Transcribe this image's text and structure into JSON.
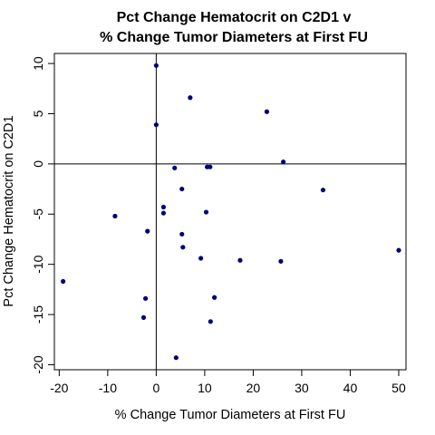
{
  "chart_data": {
    "type": "scatter",
    "title_lines": [
      "Pct Change Hematocrit on C2D1 v",
      "% Change Tumor Diameters at First FU"
    ],
    "xlabel": "% Change Tumor Diameters at First FU",
    "ylabel": "Pct Change Hematocrit on C2D1",
    "xlim": [
      -21,
      51.5
    ],
    "ylim": [
      -20.5,
      11
    ],
    "x_ticks": [
      -20,
      -10,
      0,
      10,
      20,
      30,
      40,
      50
    ],
    "y_ticks": [
      -20,
      -15,
      -10,
      -5,
      0,
      5,
      10
    ],
    "reference_lines": {
      "x": 0,
      "y": 0
    },
    "grid": false,
    "point_color": "#00007a",
    "points": [
      {
        "x": 0.0,
        "y": 9.8
      },
      {
        "x": 7.0,
        "y": 6.6
      },
      {
        "x": 22.8,
        "y": 5.2
      },
      {
        "x": 0.0,
        "y": 3.9
      },
      {
        "x": 26.2,
        "y": 0.2
      },
      {
        "x": 3.8,
        "y": -0.4
      },
      {
        "x": 10.5,
        "y": -0.3
      },
      {
        "x": 11.1,
        "y": -0.3
      },
      {
        "x": 5.3,
        "y": -2.5
      },
      {
        "x": 34.4,
        "y": -2.6
      },
      {
        "x": 1.5,
        "y": -4.3
      },
      {
        "x": 1.5,
        "y": -4.9
      },
      {
        "x": 10.3,
        "y": -4.8
      },
      {
        "x": -8.5,
        "y": -5.2
      },
      {
        "x": -1.8,
        "y": -6.7
      },
      {
        "x": 5.3,
        "y": -7.0
      },
      {
        "x": 5.5,
        "y": -8.3
      },
      {
        "x": 50.0,
        "y": -8.6
      },
      {
        "x": 9.2,
        "y": -9.4
      },
      {
        "x": 17.3,
        "y": -9.6
      },
      {
        "x": 25.7,
        "y": -9.7
      },
      {
        "x": -19.2,
        "y": -11.7
      },
      {
        "x": -2.2,
        "y": -13.4
      },
      {
        "x": 12.0,
        "y": -13.3
      },
      {
        "x": -2.6,
        "y": -15.3
      },
      {
        "x": 11.2,
        "y": -15.7
      },
      {
        "x": 4.1,
        "y": -19.3
      }
    ]
  }
}
